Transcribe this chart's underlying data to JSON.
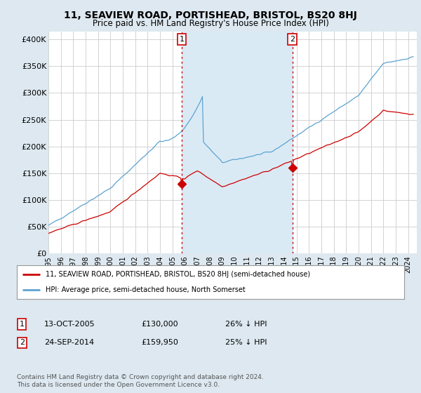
{
  "title": "11, SEAVIEW ROAD, PORTISHEAD, BRISTOL, BS20 8HJ",
  "subtitle": "Price paid vs. HM Land Registry's House Price Index (HPI)",
  "background_color": "#dde8f0",
  "plot_bg_color": "#ffffff",
  "shade_color": "#daeaf5",
  "ylabel_ticks": [
    "£0",
    "£50K",
    "£100K",
    "£150K",
    "£200K",
    "£250K",
    "£300K",
    "£350K",
    "£400K"
  ],
  "ytick_values": [
    0,
    50000,
    100000,
    150000,
    200000,
    250000,
    300000,
    350000,
    400000
  ],
  "ylim": [
    0,
    415000
  ],
  "hpi_color": "#5ba3d0",
  "price_color": "#cc0000",
  "marker1_date_idx": 130,
  "marker1_price": 130000,
  "marker1_label": "1",
  "marker2_date_idx": 238,
  "marker2_price": 159950,
  "marker2_label": "2",
  "legend_property_label": "11, SEAVIEW ROAD, PORTISHEAD, BRISTOL, BS20 8HJ (semi-detached house)",
  "legend_hpi_label": "HPI: Average price, semi-detached house, North Somerset",
  "table_rows": [
    {
      "num": "1",
      "date": "13-OCT-2005",
      "price": "£130,000",
      "pct": "26% ↓ HPI"
    },
    {
      "num": "2",
      "date": "24-SEP-2014",
      "price": "£159,950",
      "pct": "25% ↓ HPI"
    }
  ],
  "footnote": "Contains HM Land Registry data © Crown copyright and database right 2024.\nThis data is licensed under the Open Government Licence v3.0."
}
